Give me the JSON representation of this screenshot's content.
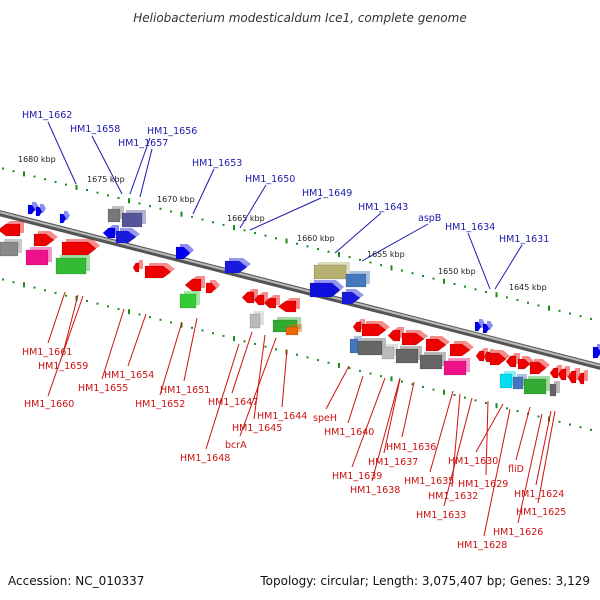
{
  "title": "Heliobacterium modesticaldum Ice1, complete genome",
  "footer": {
    "accession": "Accession: NC_010337",
    "summary": "Topology: circular; Length: 3,075,407 bp; Genes: 3,129"
  },
  "colors": {
    "top_label": "#1a1aaa",
    "bottom_label": "#cc1111",
    "tick": "#1a8a1a",
    "backbone": "#888888"
  },
  "ruler_labels": [
    "1680 kbp",
    "1675 kbp",
    "1670 kbp",
    "1665 kbp",
    "1660 kbp",
    "1655 kbp",
    "1650 kbp",
    "1645 kbp"
  ],
  "top_genes": [
    "HM1_1662",
    "HM1_1658",
    "HM1_1656",
    "HM1_1657",
    "HM1_1653",
    "HM1_1650",
    "HM1_1649",
    "HM1_1643",
    "aspB",
    "HM1_1634",
    "HM1_1631"
  ],
  "bottom_genes": [
    "HM1_1661",
    "HM1_1659",
    "HM1_1660",
    "HM1_1654",
    "HM1_1655",
    "HM1_1651",
    "HM1_1652",
    "HM1_1647",
    "HM1_1645",
    "bcrA",
    "HM1_1648",
    "HM1_1644",
    "speH",
    "HM1_1640",
    "HM1_1636",
    "HM1_1637",
    "HM1_1639",
    "HM1_1638",
    "HM1_1635",
    "HM1_1632",
    "HM1_1633",
    "HM1_1630",
    "HM1_1629",
    "fliD",
    "HM1_1624",
    "HM1_1625",
    "HM1_1626",
    "HM1_1628"
  ]
}
